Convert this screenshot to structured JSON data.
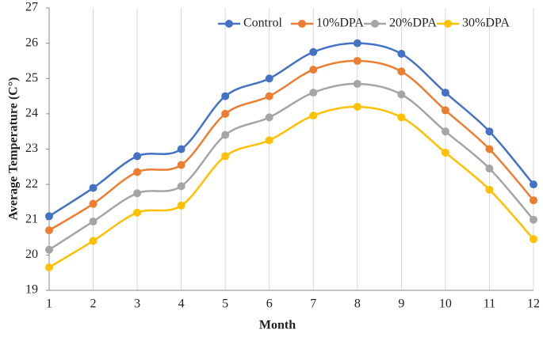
{
  "chart_data": {
    "type": "line",
    "x_label": "Month",
    "y_label": "Average Temperature (C°)",
    "x": [
      1,
      2,
      3,
      4,
      5,
      6,
      7,
      8,
      9,
      10,
      11,
      12
    ],
    "series": [
      {
        "name": "Control",
        "color": "#4472c4",
        "values": [
          21.1,
          21.9,
          22.8,
          23.0,
          24.5,
          25.0,
          25.75,
          26.0,
          25.7,
          24.6,
          23.5,
          22.0
        ]
      },
      {
        "name": "10%DPA",
        "color": "#ed7d31",
        "values": [
          20.7,
          21.45,
          22.35,
          22.55,
          24.0,
          24.5,
          25.25,
          25.5,
          25.2,
          24.1,
          23.0,
          21.55
        ]
      },
      {
        "name": "20%DPA",
        "color": "#a5a5a5",
        "values": [
          20.15,
          20.95,
          21.75,
          21.95,
          23.4,
          23.9,
          24.6,
          24.85,
          24.55,
          23.5,
          22.45,
          21.0
        ]
      },
      {
        "name": "30%DPA",
        "color": "#ffc000",
        "values": [
          19.65,
          20.4,
          21.2,
          21.4,
          22.8,
          23.25,
          23.95,
          24.2,
          23.9,
          22.9,
          21.85,
          20.45
        ]
      }
    ],
    "xlim": [
      1,
      12
    ],
    "xticks": [
      1,
      2,
      3,
      4,
      5,
      6,
      7,
      8,
      9,
      10,
      11,
      12
    ],
    "ylim": [
      19,
      27
    ],
    "yticks": [
      19,
      20,
      21,
      22,
      23,
      24,
      25,
      26,
      27
    ],
    "grid": true,
    "legend": "top-right"
  }
}
